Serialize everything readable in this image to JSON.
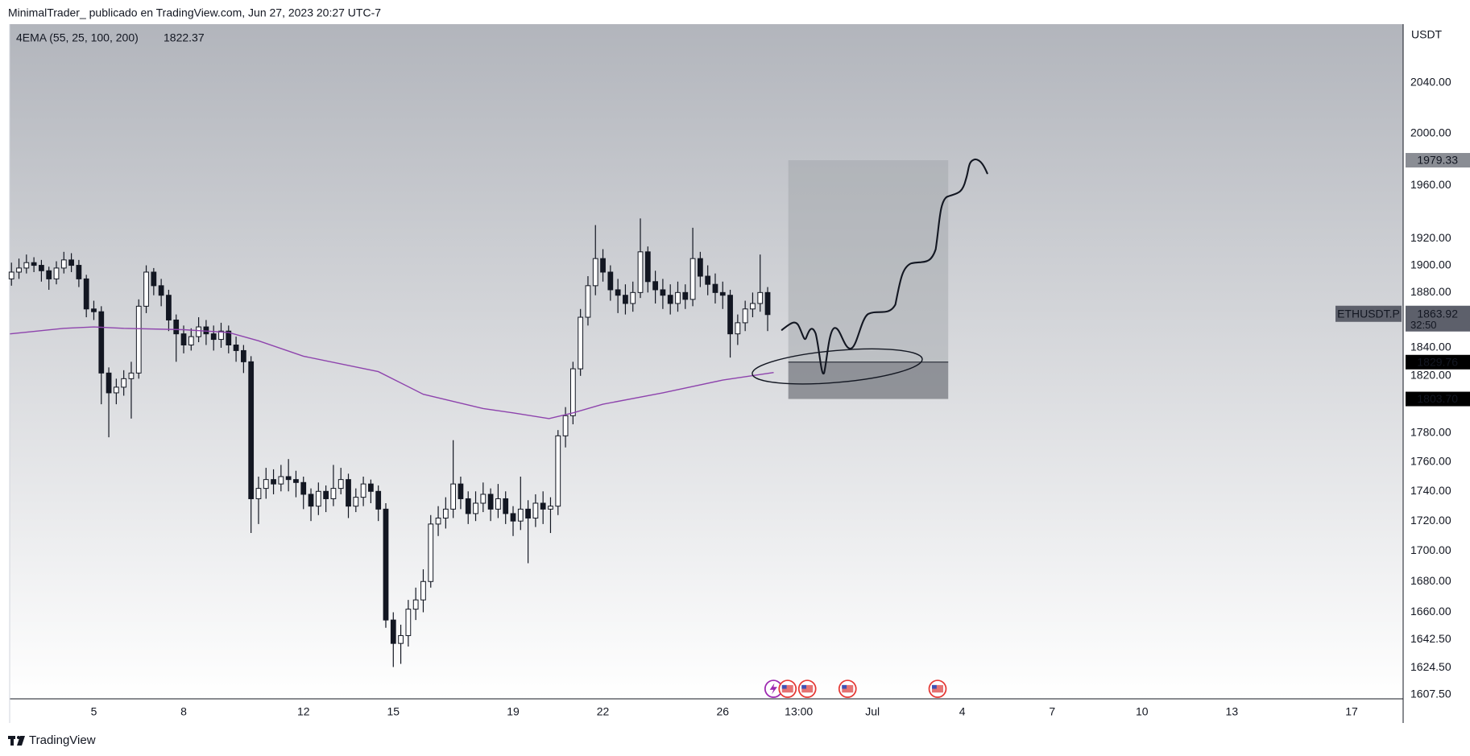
{
  "header": {
    "text": "MinimalTrader_ publicado en TradingView.com, Jun 27, 2023 20:27 UTC-7"
  },
  "footer": {
    "brand": "TradingView"
  },
  "chart_data": {
    "type": "candlestick",
    "symbol": "ETHUSDT.P",
    "y_unit": "USDT",
    "log": true,
    "grid": false,
    "up_color": "#ffffff",
    "down_color": "#131722",
    "wick_color": "#131722",
    "x": [
      2.25,
      2.5,
      2.75,
      3,
      3.25,
      3.5,
      3.75,
      4,
      4.25,
      4.5,
      4.75,
      5,
      5.25,
      5.5,
      5.75,
      6,
      6.25,
      6.5,
      6.75,
      7,
      7.25,
      7.5,
      7.75,
      8,
      8.25,
      8.5,
      8.75,
      9,
      9.25,
      9.5,
      9.75,
      10,
      10.25,
      10.5,
      10.75,
      11,
      11.25,
      11.5,
      11.75,
      12,
      12.25,
      12.5,
      12.75,
      13,
      13.25,
      13.5,
      13.75,
      14,
      14.25,
      14.5,
      14.75,
      15,
      15.25,
      15.5,
      15.75,
      16,
      16.25,
      16.5,
      16.75,
      17,
      17.25,
      17.5,
      17.75,
      18,
      18.25,
      18.5,
      18.75,
      19,
      19.25,
      19.5,
      19.75,
      20,
      20.25,
      20.5,
      20.75,
      21,
      21.25,
      21.5,
      21.75,
      22,
      22.25,
      22.5,
      22.75,
      23,
      23.25,
      23.5,
      23.75,
      24,
      24.25,
      24.5,
      24.75,
      25,
      25.25,
      25.5,
      25.75,
      26,
      26.25,
      26.5,
      26.75,
      27,
      27.25,
      27.5
    ],
    "open": [
      1890,
      1895,
      1898,
      1902,
      1900,
      1896,
      1890,
      1898,
      1904,
      1900,
      1890,
      1868,
      1866,
      1822,
      1808,
      1812,
      1818,
      1822,
      1870,
      1895,
      1885,
      1878,
      1860,
      1850,
      1842,
      1848,
      1855,
      1850,
      1846,
      1852,
      1842,
      1838,
      1830,
      1735,
      1742,
      1748,
      1745,
      1750,
      1748,
      1746,
      1738,
      1730,
      1740,
      1735,
      1742,
      1748,
      1730,
      1736,
      1745,
      1740,
      1728,
      1655,
      1640,
      1645,
      1662,
      1668,
      1680,
      1718,
      1722,
      1728,
      1745,
      1735,
      1725,
      1732,
      1738,
      1728,
      1735,
      1725,
      1720,
      1728,
      1722,
      1732,
      1728,
      1730,
      1778,
      1792,
      1825,
      1862,
      1885,
      1905,
      1895,
      1882,
      1878,
      1872,
      1880,
      1910,
      1888,
      1882,
      1878,
      1872,
      1880,
      1875,
      1905,
      1892,
      1886,
      1880,
      1878,
      1850,
      1858,
      1868,
      1872,
      1880
    ],
    "high": [
      1902,
      1905,
      1908,
      1906,
      1904,
      1899,
      1903,
      1910,
      1909,
      1904,
      1893,
      1874,
      1870,
      1826,
      1818,
      1824,
      1830,
      1875,
      1900,
      1898,
      1890,
      1882,
      1864,
      1856,
      1854,
      1862,
      1860,
      1856,
      1858,
      1856,
      1848,
      1842,
      1834,
      1750,
      1756,
      1755,
      1758,
      1762,
      1754,
      1750,
      1742,
      1746,
      1744,
      1758,
      1756,
      1752,
      1742,
      1750,
      1748,
      1744,
      1732,
      1660,
      1652,
      1668,
      1676,
      1688,
      1724,
      1730,
      1736,
      1775,
      1750,
      1740,
      1740,
      1746,
      1742,
      1745,
      1740,
      1730,
      1750,
      1734,
      1738,
      1740,
      1736,
      1782,
      1798,
      1830,
      1868,
      1892,
      1930,
      1912,
      1900,
      1890,
      1886,
      1888,
      1935,
      1914,
      1896,
      1890,
      1886,
      1888,
      1886,
      1928,
      1910,
      1900,
      1894,
      1888,
      1882,
      1864,
      1874,
      1880,
      1908,
      1884
    ],
    "low": [
      1885,
      1890,
      1894,
      1895,
      1888,
      1882,
      1886,
      1894,
      1895,
      1884,
      1862,
      1860,
      1800,
      1777,
      1800,
      1806,
      1790,
      1818,
      1865,
      1878,
      1870,
      1852,
      1830,
      1836,
      1838,
      1844,
      1842,
      1838,
      1840,
      1836,
      1830,
      1822,
      1712,
      1718,
      1735,
      1738,
      1740,
      1740,
      1736,
      1728,
      1720,
      1724,
      1726,
      1730,
      1738,
      1722,
      1726,
      1730,
      1732,
      1720,
      1650,
      1625,
      1627,
      1638,
      1655,
      1660,
      1676,
      1710,
      1715,
      1722,
      1728,
      1718,
      1720,
      1726,
      1720,
      1722,
      1718,
      1710,
      1714,
      1692,
      1716,
      1718,
      1712,
      1724,
      1770,
      1786,
      1820,
      1856,
      1878,
      1888,
      1874,
      1865,
      1864,
      1866,
      1876,
      1880,
      1872,
      1868,
      1864,
      1866,
      1868,
      1870,
      1884,
      1878,
      1872,
      1868,
      1833,
      1842,
      1852,
      1862,
      1866,
      1852
    ],
    "close": [
      1895,
      1898,
      1902,
      1900,
      1896,
      1890,
      1898,
      1904,
      1900,
      1890,
      1868,
      1866,
      1822,
      1808,
      1812,
      1818,
      1822,
      1870,
      1895,
      1885,
      1878,
      1860,
      1850,
      1842,
      1848,
      1855,
      1850,
      1846,
      1852,
      1842,
      1838,
      1830,
      1735,
      1742,
      1748,
      1745,
      1750,
      1748,
      1746,
      1738,
      1730,
      1740,
      1735,
      1742,
      1748,
      1730,
      1736,
      1745,
      1740,
      1728,
      1655,
      1640,
      1645,
      1662,
      1668,
      1680,
      1718,
      1722,
      1728,
      1745,
      1735,
      1725,
      1732,
      1738,
      1728,
      1735,
      1725,
      1720,
      1728,
      1722,
      1732,
      1728,
      1730,
      1778,
      1792,
      1825,
      1862,
      1885,
      1905,
      1895,
      1882,
      1878,
      1872,
      1880,
      1910,
      1888,
      1882,
      1878,
      1872,
      1880,
      1875,
      1905,
      1892,
      1886,
      1880,
      1878,
      1850,
      1858,
      1868,
      1872,
      1880,
      1863.92
    ],
    "indicator": {
      "name": "4EMA (55, 25, 100, 200)",
      "value": 1822.37,
      "color": "#8e44ad",
      "x": [
        2.2,
        4,
        5,
        6,
        8,
        9.5,
        10.5,
        12,
        14.5,
        16,
        18,
        19,
        20.2,
        21,
        22,
        24,
        26,
        27.7
      ],
      "values": [
        1850,
        1854,
        1855,
        1854,
        1853,
        1851,
        1845,
        1834,
        1823,
        1807,
        1797,
        1794,
        1790,
        1794,
        1800,
        1808,
        1817,
        1822.37
      ]
    },
    "xlim": [
      2.19,
      48.72
    ],
    "xticks": [
      5,
      8,
      12,
      15,
      19,
      22,
      26,
      {
        "value": 28.54,
        "label": "13:00"
      },
      {
        "value": 31,
        "label": "Jul"
      },
      {
        "value": 34,
        "label": "4"
      },
      {
        "value": 37,
        "label": "7"
      },
      {
        "value": 40,
        "label": "10"
      },
      {
        "value": 43,
        "label": "13"
      },
      {
        "value": 47,
        "label": "17"
      }
    ],
    "ylim": [
      1605,
      2087
    ],
    "yticks": [
      {
        "value": 2040,
        "label": "2040.00"
      },
      {
        "value": 2000,
        "label": "2000.00"
      },
      {
        "value": 1960,
        "label": "1960.00"
      },
      {
        "value": 1920,
        "label": "1920.00"
      },
      {
        "value": 1900,
        "label": "1900.00"
      },
      {
        "value": 1880,
        "label": "1880.00"
      },
      {
        "value": 1840,
        "label": "1840.00"
      },
      {
        "value": 1820,
        "label": "1820.00"
      },
      {
        "value": 1780,
        "label": "1780.00"
      },
      {
        "value": 1760,
        "label": "1760.00"
      },
      {
        "value": 1740,
        "label": "1740.00"
      },
      {
        "value": 1720,
        "label": "1720.00"
      },
      {
        "value": 1700,
        "label": "1700.00"
      },
      {
        "value": 1680,
        "label": "1680.00"
      },
      {
        "value": 1660,
        "label": "1660.00"
      },
      {
        "value": 1642.5,
        "label": "1642.50"
      },
      {
        "value": 1624.5,
        "label": "1624.50"
      },
      {
        "value": 1607.5,
        "label": "1607.50"
      }
    ],
    "last_price": 1863.92,
    "countdown": "32:50",
    "position": {
      "top": 1979.33,
      "entry": 1829.76,
      "stop": {
        "value": 1803.7,
        "label": "1803.70"
      },
      "x_start": 28.19,
      "x_end": 33.53,
      "target_color": "#9ea1a7",
      "stop_color": "#6f7279"
    }
  }
}
